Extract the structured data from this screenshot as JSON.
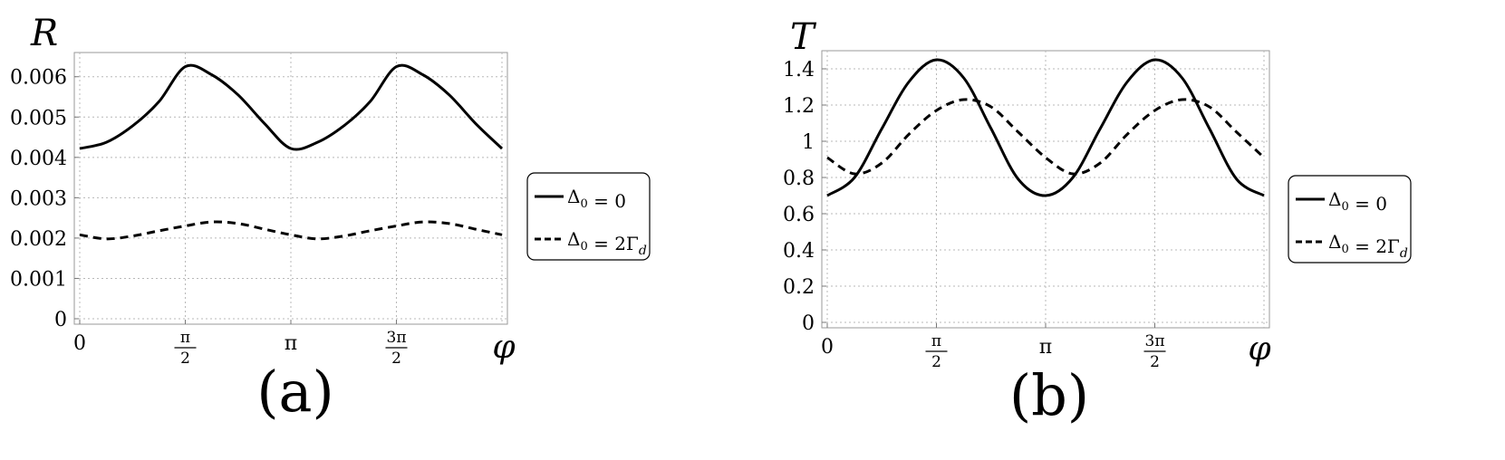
{
  "chart_data": [
    {
      "type": "line",
      "panel_label": "(a)",
      "ylabel": "R",
      "xlabel": "φ",
      "xlim": [
        0,
        6.2832
      ],
      "ylim": [
        0,
        0.0066
      ],
      "yticks": [
        0,
        0.001,
        0.002,
        0.003,
        0.004,
        0.005,
        0.006
      ],
      "ytick_labels": [
        "0",
        "0.001",
        "0.002",
        "0.003",
        "0.004",
        "0.005",
        "0.006"
      ],
      "xticks": [
        {
          "value": 0,
          "label": "0"
        },
        {
          "value": 1.5708,
          "num": "π",
          "den": "2"
        },
        {
          "value": 3.1416,
          "label": "π"
        },
        {
          "value": 4.7124,
          "num": "3π",
          "den": "2"
        }
      ],
      "grid": true,
      "legend_position": "right",
      "series": [
        {
          "name": "Δ₀ = 0",
          "style": "solid",
          "x": [
            0,
            0.3927,
            0.7854,
            1.1781,
            1.5708,
            1.9635,
            2.3562,
            2.7489,
            3.1416,
            3.5343,
            3.927,
            4.3197,
            4.7124,
            5.1051,
            5.4978,
            5.8905,
            6.2832
          ],
          "y": [
            0.00422,
            0.00437,
            0.00478,
            0.00538,
            0.00625,
            0.00605,
            0.00555,
            0.00484,
            0.00422,
            0.00437,
            0.00478,
            0.00538,
            0.00625,
            0.00605,
            0.00555,
            0.00484,
            0.00422
          ]
        },
        {
          "name": "Δ₀ = 2Γ_d",
          "style": "dashed",
          "x": [
            0,
            0.3927,
            0.7854,
            1.1781,
            1.5708,
            1.9635,
            2.3562,
            2.7489,
            3.1416,
            3.5343,
            3.927,
            4.3197,
            4.7124,
            5.1051,
            5.4978,
            5.8905,
            6.2832
          ],
          "y": [
            0.00208,
            0.00198,
            0.00205,
            0.00218,
            0.0023,
            0.0024,
            0.00236,
            0.00222,
            0.00208,
            0.00198,
            0.00205,
            0.00218,
            0.0023,
            0.0024,
            0.00236,
            0.00222,
            0.00208
          ]
        }
      ]
    },
    {
      "type": "line",
      "panel_label": "(b)",
      "ylabel": "T",
      "xlabel": "φ",
      "xlim": [
        0,
        6.2832
      ],
      "ylim": [
        0,
        1.5
      ],
      "yticks": [
        0,
        0.2,
        0.4,
        0.6,
        0.8,
        1,
        1.2,
        1.4
      ],
      "ytick_labels": [
        "0",
        "0.2",
        "0.4",
        "0.6",
        "0.8",
        "1",
        "1.2",
        "1.4"
      ],
      "xticks": [
        {
          "value": 0,
          "label": "0"
        },
        {
          "value": 1.5708,
          "num": "π",
          "den": "2"
        },
        {
          "value": 3.1416,
          "label": "π"
        },
        {
          "value": 4.7124,
          "num": "3π",
          "den": "2"
        }
      ],
      "grid": true,
      "legend_position": "right",
      "series": [
        {
          "name": "Δ₀ = 0",
          "style": "solid",
          "x": [
            0,
            0.3927,
            0.7854,
            1.1781,
            1.5708,
            1.9635,
            2.3562,
            2.7489,
            3.1416,
            3.5343,
            3.927,
            4.3197,
            4.7124,
            5.1051,
            5.4978,
            5.8905,
            6.2832
          ],
          "y": [
            0.7,
            0.8,
            1.07,
            1.33,
            1.45,
            1.35,
            1.07,
            0.79,
            0.7,
            0.8,
            1.07,
            1.33,
            1.45,
            1.35,
            1.07,
            0.79,
            0.7
          ]
        },
        {
          "name": "Δ₀ = 2Γ_d",
          "style": "dashed",
          "x": [
            0,
            0.3927,
            0.7854,
            1.1781,
            1.5708,
            1.9635,
            2.3562,
            2.7489,
            3.1416,
            3.5343,
            3.927,
            4.3197,
            4.7124,
            5.1051,
            5.4978,
            5.8905,
            6.2832
          ],
          "y": [
            0.91,
            0.82,
            0.88,
            1.04,
            1.17,
            1.23,
            1.19,
            1.05,
            0.91,
            0.82,
            0.88,
            1.04,
            1.17,
            1.23,
            1.19,
            1.05,
            0.91
          ]
        }
      ]
    }
  ]
}
